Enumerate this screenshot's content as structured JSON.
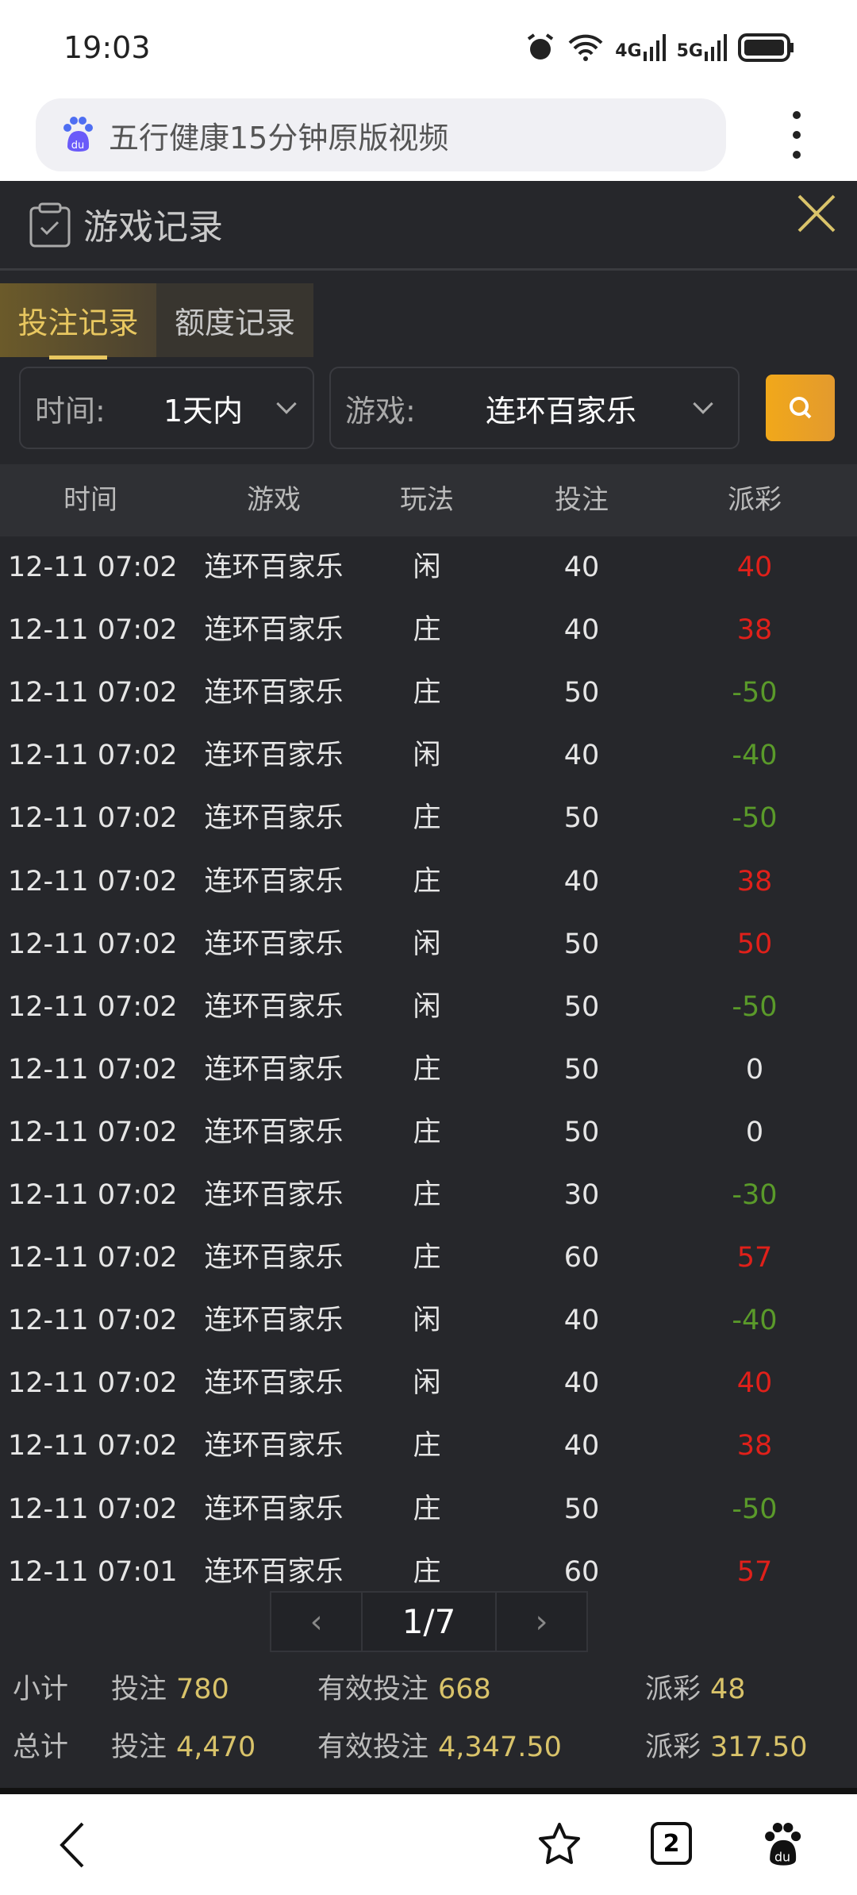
{
  "status_bar": {
    "time": "19:03",
    "icons": [
      "alarm-icon",
      "wifi-icon",
      "4g-signal-icon",
      "5g-signal-icon",
      "battery-icon"
    ],
    "net1": "4G",
    "net2": "5G"
  },
  "browser": {
    "address_text": "五行健康15分钟原版视频",
    "logo": "du"
  },
  "panel": {
    "title": "游戏记录",
    "tabs": [
      {
        "label": "投注记录",
        "active": true
      },
      {
        "label": "额度记录",
        "active": false
      }
    ],
    "filters": {
      "time_label": "时间:",
      "time_value": "1天内",
      "game_label": "游戏:",
      "game_value": "连环百家乐"
    },
    "columns": [
      "时间",
      "游戏",
      "玩法",
      "投注",
      "派彩"
    ],
    "rows": [
      [
        "12-11 07:02",
        "连环百家乐",
        "闲",
        "40",
        "40"
      ],
      [
        "12-11 07:02",
        "连环百家乐",
        "庄",
        "40",
        "38"
      ],
      [
        "12-11 07:02",
        "连环百家乐",
        "庄",
        "50",
        "-50"
      ],
      [
        "12-11 07:02",
        "连环百家乐",
        "闲",
        "40",
        "-40"
      ],
      [
        "12-11 07:02",
        "连环百家乐",
        "庄",
        "50",
        "-50"
      ],
      [
        "12-11 07:02",
        "连环百家乐",
        "庄",
        "40",
        "38"
      ],
      [
        "12-11 07:02",
        "连环百家乐",
        "闲",
        "50",
        "50"
      ],
      [
        "12-11 07:02",
        "连环百家乐",
        "闲",
        "50",
        "-50"
      ],
      [
        "12-11 07:02",
        "连环百家乐",
        "庄",
        "50",
        "0"
      ],
      [
        "12-11 07:02",
        "连环百家乐",
        "庄",
        "50",
        "0"
      ],
      [
        "12-11 07:02",
        "连环百家乐",
        "庄",
        "30",
        "-30"
      ],
      [
        "12-11 07:02",
        "连环百家乐",
        "庄",
        "60",
        "57"
      ],
      [
        "12-11 07:02",
        "连环百家乐",
        "闲",
        "40",
        "-40"
      ],
      [
        "12-11 07:02",
        "连环百家乐",
        "闲",
        "40",
        "40"
      ],
      [
        "12-11 07:02",
        "连环百家乐",
        "庄",
        "40",
        "38"
      ],
      [
        "12-11 07:02",
        "连环百家乐",
        "庄",
        "50",
        "-50"
      ],
      [
        "12-11 07:01",
        "连环百家乐",
        "庄",
        "60",
        "57"
      ]
    ],
    "pager": {
      "page": "1/7",
      "prev": "‹",
      "next": "›"
    },
    "subtotal": {
      "label": "小计",
      "bet_label": "投注",
      "bet": "780",
      "valid_label": "有效投注",
      "valid": "668",
      "payout_label": "派彩",
      "payout": "48"
    },
    "total": {
      "label": "总计",
      "bet_label": "投注",
      "bet": "4,470",
      "valid_label": "有效投注",
      "valid": "4,347.50",
      "payout_label": "派彩",
      "payout": "317.50"
    }
  },
  "bottom_nav": {
    "tabs_count": "2"
  },
  "colors": {
    "win": "#e0201a",
    "loss": "#5a9a2a",
    "gold": "#d9c36a",
    "accent": "#f1a81a"
  }
}
